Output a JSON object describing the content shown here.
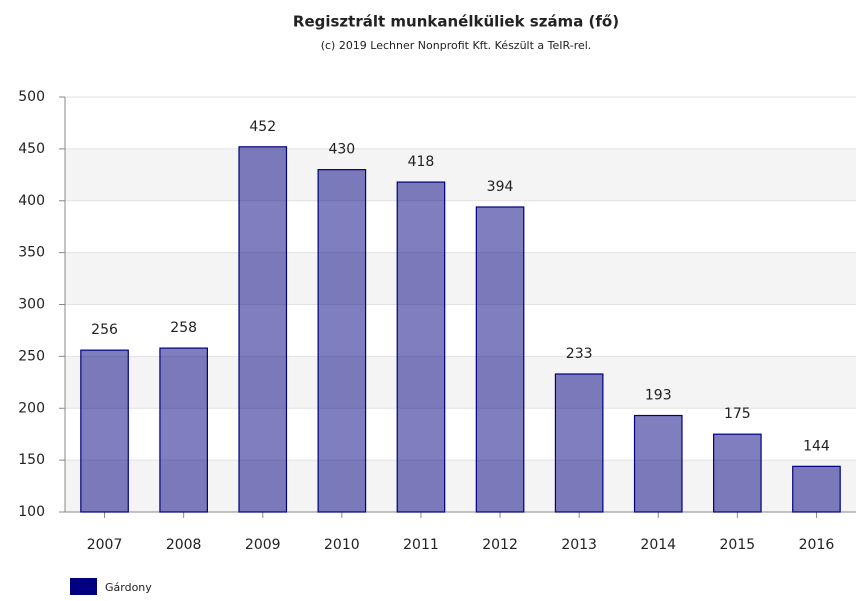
{
  "chart_data": {
    "type": "bar",
    "title": "Regisztrált munkanélküliek száma (fő)",
    "subtitle": "(c) 2019 Lechner Nonprofit Kft. Készült a TeIR-rel.",
    "categories": [
      "2007",
      "2008",
      "2009",
      "2010",
      "2011",
      "2012",
      "2013",
      "2014",
      "2015",
      "2016"
    ],
    "series": [
      {
        "name": "Gárdony",
        "color": "#000080",
        "values": [
          256,
          258,
          452,
          430,
          418,
          394,
          233,
          193,
          175,
          144
        ]
      }
    ],
    "ylim": [
      100,
      500
    ],
    "yticks": [
      100,
      150,
      200,
      250,
      300,
      350,
      400,
      450,
      500
    ],
    "grid": true,
    "alternating_bands": true,
    "legend": "bottom-left"
  }
}
